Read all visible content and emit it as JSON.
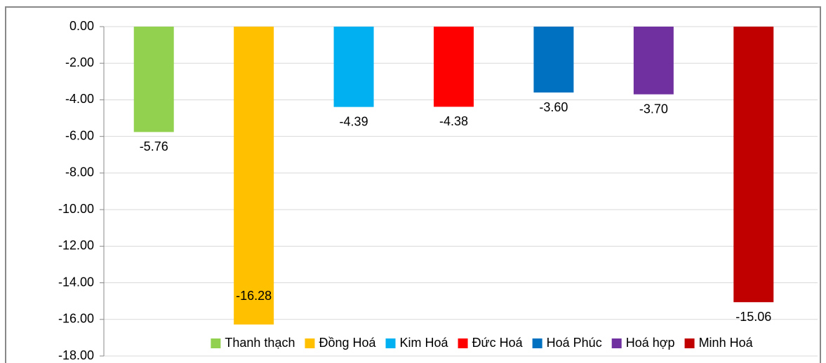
{
  "chart_data": {
    "type": "bar",
    "categories": [
      "Thanh thạch",
      "Đồng Hoá",
      "Kim Hoá",
      "Đức Hoá",
      "Hoá Phúc",
      "Hoá hợp",
      "Minh Hoá"
    ],
    "values": [
      -5.76,
      -16.28,
      -4.39,
      -4.38,
      -3.6,
      -3.7,
      -15.06
    ],
    "value_labels": [
      "-5.76",
      "-16.28",
      "-4.39",
      "-4.38",
      "-3.60",
      "-3.70",
      "-15.06"
    ],
    "colors": [
      "#92d050",
      "#ffc000",
      "#00b0f0",
      "#ff0000",
      "#0070c0",
      "#7030a0",
      "#c00000"
    ],
    "ylim": [
      -18,
      0
    ],
    "yticks": [
      {
        "value": 0,
        "label": "0.00"
      },
      {
        "value": -2,
        "label": "-2.00"
      },
      {
        "value": -4,
        "label": "-4.00"
      },
      {
        "value": -6,
        "label": "-6.00"
      },
      {
        "value": -8,
        "label": "-8.00"
      },
      {
        "value": -10,
        "label": "-10.00"
      },
      {
        "value": -12,
        "label": "-12.00"
      },
      {
        "value": -14,
        "label": "-14.00"
      },
      {
        "value": -16,
        "label": "-16.00"
      },
      {
        "value": -18,
        "label": "-18.00"
      }
    ],
    "grid": true,
    "legend": "bottom"
  }
}
